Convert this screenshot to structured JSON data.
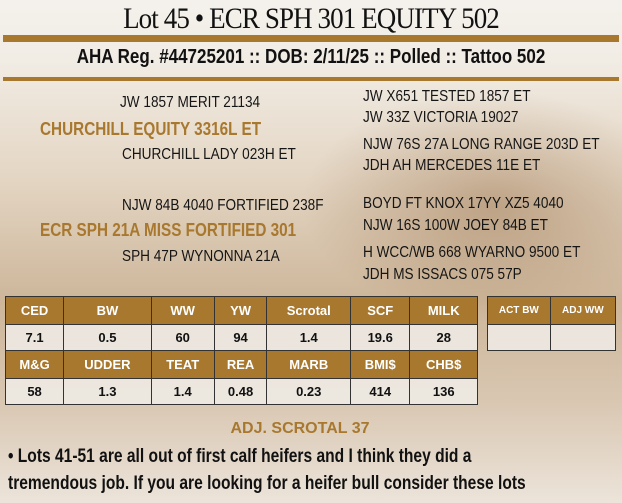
{
  "title": "Lot 45 • ECR SPH 301 EQUITY 502",
  "subtitle": "AHA Reg. #44725201 :: DOB: 2/11/25 :: Polled :: Tattoo 502",
  "pedigree": {
    "sire": "CHURCHILL EQUITY 3316L ET",
    "sire_sire": "JW 1857 MERIT 21134",
    "sire_dam": "CHURCHILL LADY 023H ET",
    "sss": "JW X651 TESTED 1857 ET",
    "ssd": "JW 33Z VICTORIA 19027",
    "sds": "NJW 76S 27A LONG RANGE 203D ET",
    "sdd": "JDH AH MERCEDES 11E ET",
    "dam": "ECR SPH 21A MISS FORTIFIED 301",
    "dam_sire": "NJW 84B 4040 FORTIFIED 238F",
    "dam_dam": "SPH 47P WYNONNA 21A",
    "dss": "BOYD FT KNOX 17YY XZ5 4040",
    "dsd": "NJW 16S 100W JOEY 84B ET",
    "dds": "H WCC/WB 668 WYARNO 9500 ET",
    "ddd": "JDH MS ISSACS 075 57P"
  },
  "epd": {
    "row1_headers": [
      "CED",
      "BW",
      "WW",
      "YW",
      "Scrotal",
      "SCF",
      "MILK"
    ],
    "row1_values": [
      "7.1",
      "0.5",
      "60",
      "94",
      "1.4",
      "19.6",
      "28"
    ],
    "row2_headers": [
      "M&G",
      "UDDER",
      "TEAT",
      "REA",
      "MARB",
      "BMI$",
      "CHB$"
    ],
    "row2_values": [
      "58",
      "1.3",
      "1.4",
      "0.48",
      "0.23",
      "414",
      "136"
    ]
  },
  "actual": {
    "headers": [
      "ACT BW",
      "ADJ WW"
    ],
    "values": [
      "",
      ""
    ]
  },
  "adj_scrotal": "ADJ. SCROTAL 37",
  "note": "• Lots 41-51 are all out of first calf heifers and I think they did a tremendous job. If you are looking for a heifer bull consider these lots",
  "colors": {
    "accent": "#a8782e"
  }
}
